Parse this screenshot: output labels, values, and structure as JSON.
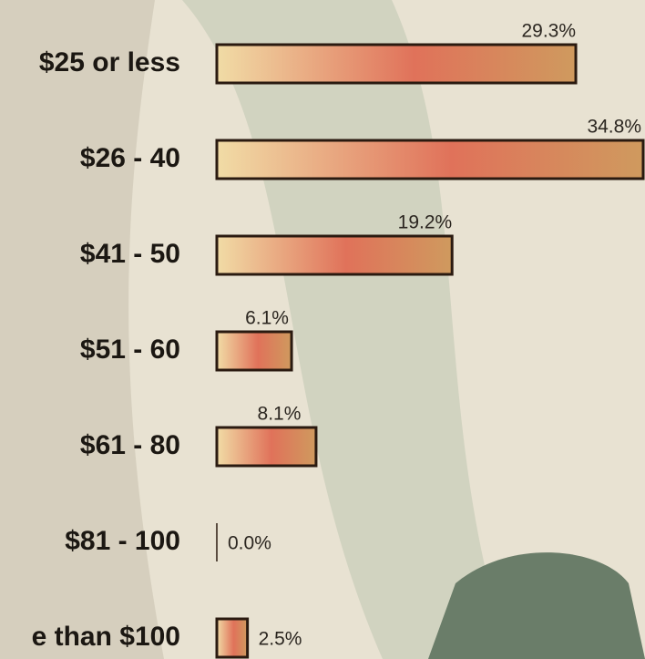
{
  "chart_data": {
    "type": "hbar",
    "categories": [
      "$25 or less",
      "$26 - 40",
      "$41 - 50",
      "$51 - 60",
      "$61 - 80",
      "$81 - 100",
      "e than $100"
    ],
    "values": [
      29.3,
      34.8,
      19.2,
      6.1,
      8.1,
      0.0,
      2.5
    ],
    "value_labels": [
      "29.3%",
      "34.8%",
      "19.2%",
      "6.1%",
      "8.1%",
      "0.0%",
      "2.5%"
    ],
    "color": "#e0725a"
  }
}
